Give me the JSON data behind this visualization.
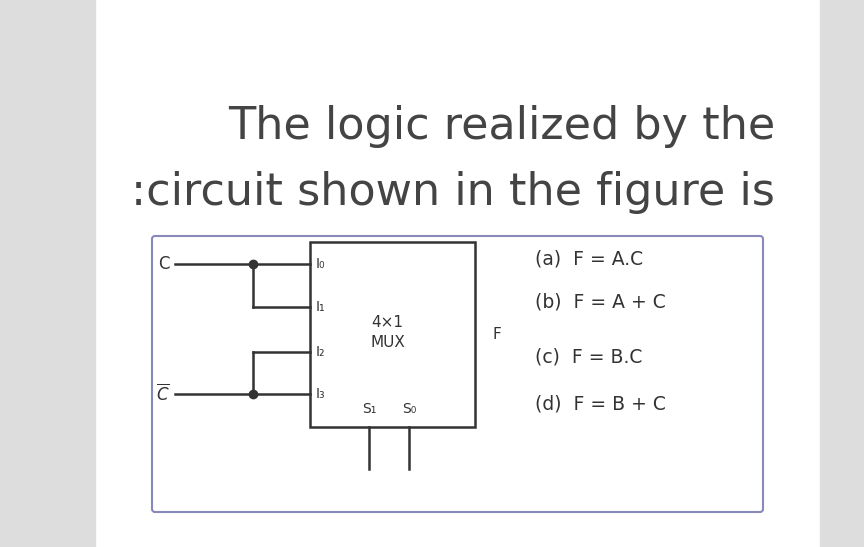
{
  "title_line1": "The logic realized by the",
  "title_line2": ":circuit shown in the figure is",
  "title_fontsize": 32,
  "title_color": "#444444",
  "bg_color": "#ffffff",
  "outer_box_color": "#8888bb",
  "circuit_color": "#333333",
  "options": [
    "(a)  F = A.C",
    "(b)  F = A + C",
    "(c)  F = B.C",
    "(d)  F = B + C"
  ],
  "mux_label1": "4×1",
  "mux_label2": "MUX",
  "mux_output": "F",
  "input_labels": [
    "I₀",
    "I₁",
    "I₂",
    "I₃"
  ],
  "select_labels": [
    "S₁",
    "S₀"
  ],
  "options_fontsize": 13.5,
  "circuit_fontsize": 11
}
